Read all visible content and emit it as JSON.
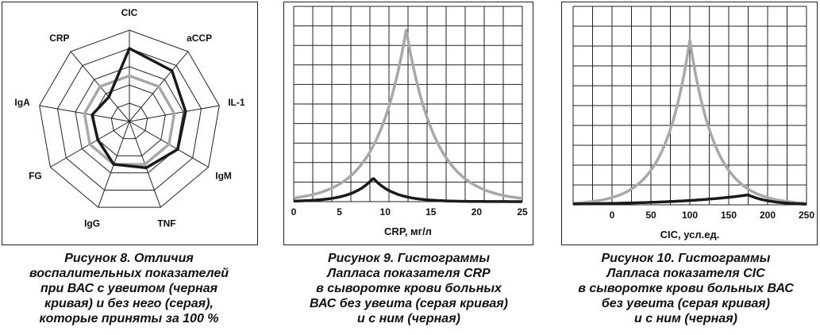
{
  "figures": [
    {
      "caption_lines": [
        "Рисунок 8. Отличия",
        "воспалительных показателей",
        "при ВАС с увеитом (черная",
        "кривая) и без него (серая),",
        "которые приняты за 100 %"
      ]
    },
    {
      "caption_lines": [
        "Рисунок 9. Гистограммы",
        "Лапласа показателя CRP",
        "в сыворотке крови больных",
        "ВАС без увеита (серая кривая)",
        "и с ним (черная)"
      ]
    },
    {
      "caption_lines": [
        "Рисунок 10. Гистограммы",
        "Лапласа показателя CIC",
        "в сыворотке крови больных ВАС",
        "без увеита (серая кривая)",
        "и с ним (черная)"
      ]
    }
  ],
  "colors": {
    "black_curve": "#1a1a1a",
    "gray_curve": "#a8a8a8",
    "grid": "#222222"
  },
  "chart_data": [
    {
      "type": "radar",
      "axes": [
        "CIC",
        "aCCP",
        "IL-1",
        "IgM",
        "TNF",
        "IgG",
        "FG",
        "IgA",
        "CRP"
      ],
      "rings": 5,
      "rmax": 200,
      "series": [
        {
          "name": "",
          "color": "black",
          "values": [
            160,
            145,
            125,
            122,
            108,
            100,
            80,
            83,
            70
          ]
        },
        {
          "name": "",
          "color": "gray",
          "values": [
            100,
            100,
            100,
            100,
            100,
            100,
            100,
            100,
            100
          ]
        }
      ]
    },
    {
      "type": "line",
      "xlabel": "CRP, мг/л",
      "ylabel": "",
      "xlim": [
        0,
        25
      ],
      "ylim": [
        0,
        1
      ],
      "x_ticks": [
        0,
        5,
        10,
        15,
        20,
        25
      ],
      "grid": true,
      "series": [
        {
          "name": "",
          "color": "gray",
          "shape": "laplace",
          "center": 12.3,
          "peak": 0.88,
          "scale": 3.2
        },
        {
          "name": "",
          "color": "black",
          "shape": "laplace",
          "center": 8.7,
          "peak": 0.12,
          "scale": 2.3
        }
      ]
    },
    {
      "type": "line",
      "xlabel": "CIC, усл.ед.",
      "ylabel": "",
      "xlim": [
        -50,
        250
      ],
      "ylim": [
        0,
        1
      ],
      "x_ticks": [
        0,
        50,
        100,
        150,
        200,
        250
      ],
      "grid": true,
      "series": [
        {
          "name": "",
          "color": "gray",
          "shape": "laplace",
          "center": 100,
          "peak": 0.83,
          "scale": 32
        },
        {
          "name": "",
          "color": "black",
          "shape": "skew",
          "center": 175,
          "peak": 0.05,
          "scale_left": 90,
          "scale_right": 28
        }
      ]
    }
  ]
}
